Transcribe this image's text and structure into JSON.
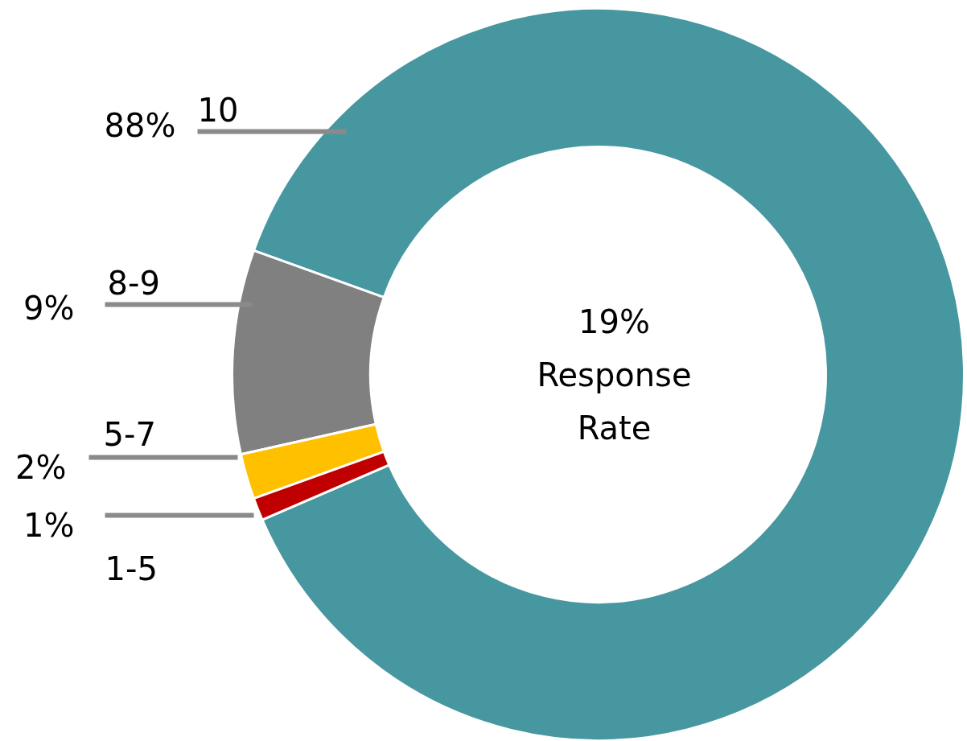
{
  "chart_data": {
    "type": "donut",
    "categories": [
      "10",
      "8-9",
      "5-7",
      "1-5"
    ],
    "values": [
      88,
      9,
      2,
      1
    ],
    "colors": [
      "#4797a0",
      "#808080",
      "#ffc000",
      "#c00000"
    ],
    "value_labels": [
      "88%",
      "9%",
      "2%",
      "1%"
    ],
    "annotations": [
      "19% Response Rate"
    ]
  }
}
